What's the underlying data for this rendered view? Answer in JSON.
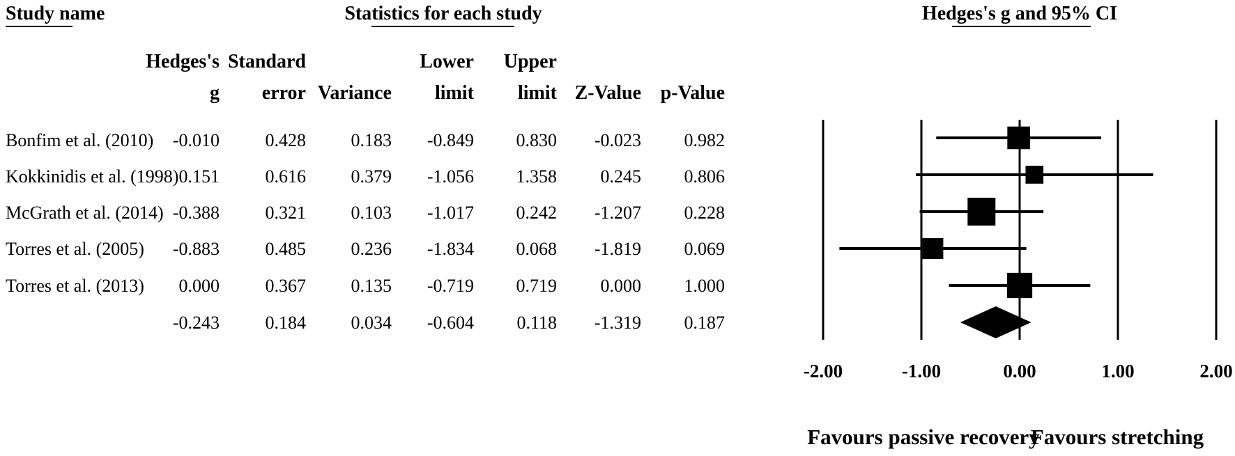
{
  "headers": {
    "study_name": "Study name",
    "statistics": "Statistics for each study",
    "plot_title": "Hedges's g and 95% CI"
  },
  "columns": [
    {
      "line1": "Hedges's",
      "line2": "g"
    },
    {
      "line1": "Standard",
      "line2": "error"
    },
    {
      "line1": "",
      "line2": "Variance"
    },
    {
      "line1": "Lower",
      "line2": "limit"
    },
    {
      "line1": "Upper",
      "line2": "limit"
    },
    {
      "line1": "",
      "line2": "Z-Value"
    },
    {
      "line1": "",
      "line2": "p-Value"
    }
  ],
  "rows": [
    {
      "study": "Bonfim et al. (2010)",
      "cells": [
        "-0.010",
        "0.428",
        "0.183",
        "-0.849",
        "0.830",
        "-0.023",
        "0.982"
      ]
    },
    {
      "study": "Kokkinidis et al. (1998)",
      "cells": [
        "0.151",
        "0.616",
        "0.379",
        "-1.056",
        "1.358",
        "0.245",
        "0.806"
      ]
    },
    {
      "study": "McGrath et al. (2014)",
      "cells": [
        "-0.388",
        "0.321",
        "0.103",
        "-1.017",
        "0.242",
        "-1.207",
        "0.228"
      ]
    },
    {
      "study": "Torres et al. (2005)",
      "cells": [
        "-0.883",
        "0.485",
        "0.236",
        "-1.834",
        "0.068",
        "-1.819",
        "0.069"
      ]
    },
    {
      "study": "Torres et al. (2013)",
      "cells": [
        "0.000",
        "0.367",
        "0.135",
        "-0.719",
        "0.719",
        "0.000",
        "1.000"
      ]
    },
    {
      "study": "",
      "cells": [
        "-0.243",
        "0.184",
        "0.034",
        "-0.604",
        "0.118",
        "-1.319",
        "0.187"
      ]
    }
  ],
  "chart_data": {
    "type": "forest",
    "xlim": [
      -2,
      2
    ],
    "ticks": [
      "-2.00",
      "-1.00",
      "0.00",
      "1.00",
      "2.00"
    ],
    "tick_values": [
      -2,
      -1,
      0,
      1,
      2
    ],
    "studies": [
      {
        "g": -0.01,
        "lower": -0.849,
        "upper": 0.83,
        "se": 0.428
      },
      {
        "g": 0.151,
        "lower": -1.056,
        "upper": 1.358,
        "se": 0.616
      },
      {
        "g": -0.388,
        "lower": -1.017,
        "upper": 0.242,
        "se": 0.321
      },
      {
        "g": -0.883,
        "lower": -1.834,
        "upper": 0.068,
        "se": 0.485
      },
      {
        "g": 0.0,
        "lower": -0.719,
        "upper": 0.719,
        "se": 0.367
      }
    ],
    "summary": {
      "g": -0.243,
      "lower": -0.604,
      "upper": 0.118
    },
    "favours_left": "Favours passive recovery",
    "favours_right": "Favours stretching"
  }
}
